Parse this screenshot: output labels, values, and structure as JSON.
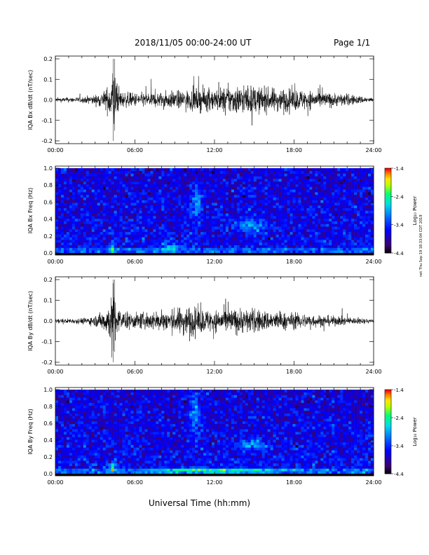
{
  "header": {
    "title": "2018/11/05  00:00-24:00 UT",
    "page": "Page 1/1"
  },
  "footer": {
    "xlabel": "Universal Time (hh:mm)"
  },
  "side_note": "net Thu Sep 19 18:33:04 CDT 2019",
  "colors": {
    "trace": "#000000",
    "spectrogram_palette": [
      "#000000",
      "#4b0082",
      "#0000ff",
      "#00bfff",
      "#00ff80",
      "#ffff00",
      "#ff8000",
      "#ff0000"
    ]
  },
  "chart_data": [
    {
      "type": "line",
      "ylabel": "IQA Bx dB/dt (nT/sec)",
      "ylim": [
        -0.2,
        0.2
      ],
      "yticks": [
        "0.2",
        "0.1",
        "0.0",
        "-0.1",
        "-0.2"
      ],
      "xticks": [
        "00:00",
        "06:00",
        "12:00",
        "18:00",
        "24:00"
      ],
      "xlim_hours": [
        0,
        24
      ],
      "envelope": {
        "x": [
          0,
          2,
          3,
          3.8,
          4.2,
          4.4,
          4.6,
          5,
          6,
          8,
          10,
          11,
          12,
          13,
          14,
          15,
          16,
          17,
          18,
          19,
          20,
          21,
          22,
          23,
          24
        ],
        "amp": [
          0.01,
          0.015,
          0.025,
          0.05,
          0.11,
          0.2,
          0.08,
          0.04,
          0.035,
          0.04,
          0.05,
          0.06,
          0.055,
          0.07,
          0.075,
          0.07,
          0.06,
          0.06,
          0.055,
          0.05,
          0.04,
          0.035,
          0.03,
          0.02,
          0.01
        ]
      }
    },
    {
      "type": "heatmap",
      "ylabel": "IQA Bx Freq (Hz)",
      "ylim": [
        0,
        1.0
      ],
      "yticks": [
        "1.0",
        "0.8",
        "0.6",
        "0.4",
        "0.2",
        "0.0"
      ],
      "xticks": [
        "00:00",
        "06:00",
        "12:00",
        "18:00",
        "24:00"
      ],
      "colorbar": {
        "label": "Log₁₀ Power",
        "ticks": [
          "-1.4",
          "-2.4",
          "-3.4",
          "-4.4"
        ],
        "range": [
          -4.4,
          -1.4
        ]
      },
      "features": [
        {
          "t": 10.6,
          "f": 0.62,
          "dt": 0.4,
          "df": 0.2,
          "level": -2.9
        },
        {
          "t": 14.7,
          "f": 0.33,
          "dt": 1.2,
          "df": 0.08,
          "level": -2.9
        },
        {
          "t": 4.3,
          "f": 0.05,
          "dt": 0.2,
          "df": 0.05,
          "level": -2.2
        },
        {
          "t": 8.6,
          "f": 0.07,
          "dt": 0.6,
          "df": 0.05,
          "level": -2.6
        }
      ]
    },
    {
      "type": "line",
      "ylabel": "IQA By dB/dt (nT/sec)",
      "ylim": [
        -0.2,
        0.2
      ],
      "yticks": [
        "0.2",
        "0.1",
        "0.0",
        "-0.1",
        "-0.2"
      ],
      "xticks": [
        "00:00",
        "06:00",
        "12:00",
        "18:00",
        "24:00"
      ],
      "xlim_hours": [
        0,
        24
      ],
      "envelope": {
        "x": [
          0,
          2,
          3,
          3.8,
          4.2,
          4.4,
          4.6,
          5,
          6,
          8,
          9,
          10,
          11,
          12,
          13,
          14,
          15,
          16,
          17,
          18,
          19,
          20,
          21,
          22,
          23,
          24
        ],
        "amp": [
          0.01,
          0.015,
          0.025,
          0.06,
          0.12,
          0.2,
          0.08,
          0.045,
          0.04,
          0.05,
          0.06,
          0.08,
          0.06,
          0.055,
          0.06,
          0.065,
          0.06,
          0.05,
          0.045,
          0.04,
          0.035,
          0.03,
          0.025,
          0.02,
          0.015,
          0.01
        ]
      }
    },
    {
      "type": "heatmap",
      "ylabel": "IQA By Freq (Hz)",
      "ylim": [
        0,
        1.0
      ],
      "yticks": [
        "1.0",
        "0.8",
        "0.6",
        "0.4",
        "0.2",
        "0.0"
      ],
      "xticks": [
        "00:00",
        "06:00",
        "12:00",
        "18:00",
        "24:00"
      ],
      "colorbar": {
        "label": "Log₁₀ Power",
        "ticks": [
          "-1.4",
          "-2.4",
          "-3.4",
          "-4.4"
        ],
        "range": [
          -4.4,
          -1.4
        ]
      },
      "features": [
        {
          "t": 10.6,
          "f": 0.7,
          "dt": 0.4,
          "df": 0.22,
          "level": -2.9
        },
        {
          "t": 14.8,
          "f": 0.35,
          "dt": 1.1,
          "df": 0.07,
          "level": -2.9
        },
        {
          "t": 4.3,
          "f": 0.06,
          "dt": 0.2,
          "df": 0.06,
          "level": -2.3
        },
        {
          "t": 12.0,
          "f": 0.04,
          "dt": 6.0,
          "df": 0.03,
          "level": -2.8
        }
      ]
    }
  ]
}
